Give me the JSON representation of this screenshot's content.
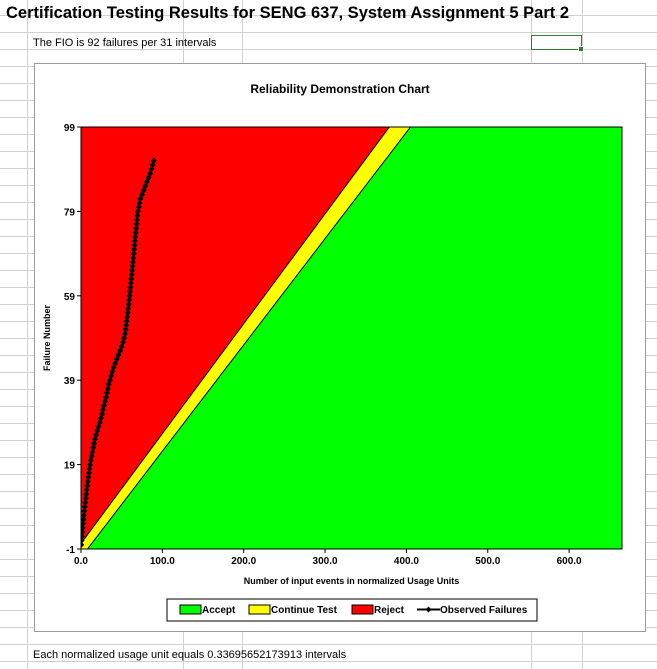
{
  "header": {
    "title": "Certification Testing Results for SENG 637, System Assignment 5 Part 2",
    "fio_note": "The FIO is 92 failures per 31 intervals"
  },
  "footer": {
    "note": "Each normalized usage unit equals 0.33695652173913 intervals"
  },
  "chart_data": {
    "type": "area",
    "title": "Reliability Demonstration Chart",
    "xlabel": "Number of input events in normalized Usage Units",
    "ylabel": "Failure Number",
    "xlim": [
      0,
      665
    ],
    "ylim": [
      -1,
      99
    ],
    "x_ticks": [
      "0.0",
      "100.0",
      "200.0",
      "300.0",
      "400.0",
      "500.0",
      "600.0"
    ],
    "y_ticks": [
      "-1",
      "19",
      "39",
      "59",
      "79",
      "99"
    ],
    "grid": false,
    "legend_position": "bottom",
    "regions": [
      {
        "name": "Accept",
        "color": "#00ff00",
        "boundary": {
          "x0": 8,
          "y0": -1,
          "x1": 405,
          "y1": 99
        }
      },
      {
        "name": "Continue Test",
        "color": "#ffff00"
      },
      {
        "name": "Reject",
        "color": "#ff0000",
        "boundary": {
          "x0": -5,
          "y0": -1,
          "x1": 379,
          "y1": 99
        }
      }
    ],
    "series": [
      {
        "name": "Observed Failures",
        "color": "#000000",
        "x": [
          0.3,
          0.7,
          1.1,
          1.5,
          2.0,
          2.5,
          3.0,
          3.5,
          4.0,
          4.6,
          5.2,
          5.8,
          6.4,
          7.0,
          7.7,
          8.4,
          9.1,
          9.8,
          10.5,
          11.2,
          12.0,
          13.0,
          14.0,
          15.0,
          16.0,
          17.0,
          18.5,
          20.0,
          21.5,
          23.0,
          24.5,
          26.0,
          27.0,
          28.0,
          29.5,
          31.0,
          32.0,
          33.0,
          34.0,
          35.5,
          37.0,
          38.5,
          40.0,
          42.0,
          44.0,
          46.0,
          48.0,
          50.0,
          51.5,
          53.0,
          54.0,
          54.8,
          55.5,
          56.2,
          56.9,
          57.5,
          58.1,
          58.7,
          59.2,
          59.8,
          60.3,
          60.8,
          61.3,
          61.8,
          62.3,
          62.8,
          63.3,
          63.8,
          64.3,
          64.8,
          65.3,
          65.8,
          66.3,
          66.8,
          67.3,
          67.8,
          68.3,
          68.8,
          69.3,
          70.0,
          71.0,
          72.0,
          73.0,
          75.0,
          77.0,
          79.0,
          81.0,
          83.0,
          85.0,
          86.5,
          88.0,
          89.5
        ],
        "y": [
          0,
          1,
          2,
          3,
          4,
          5,
          6,
          7,
          8,
          9,
          10,
          11,
          12,
          13,
          14,
          15,
          16,
          17,
          18,
          19,
          20,
          21,
          22,
          23,
          24,
          25,
          26,
          27,
          28,
          29,
          30,
          31,
          32,
          33,
          34,
          35,
          36,
          37,
          38,
          39,
          40,
          41,
          42,
          43,
          44,
          45,
          46,
          47,
          48,
          49,
          50,
          51,
          52,
          53,
          54,
          55,
          56,
          57,
          58,
          59,
          60,
          61,
          62,
          63,
          64,
          65,
          66,
          67,
          68,
          69,
          70,
          71,
          72,
          73,
          74,
          75,
          76,
          77,
          78,
          79,
          80,
          81,
          82,
          83,
          84,
          85,
          86,
          87,
          88,
          89,
          90,
          91
        ]
      }
    ]
  }
}
